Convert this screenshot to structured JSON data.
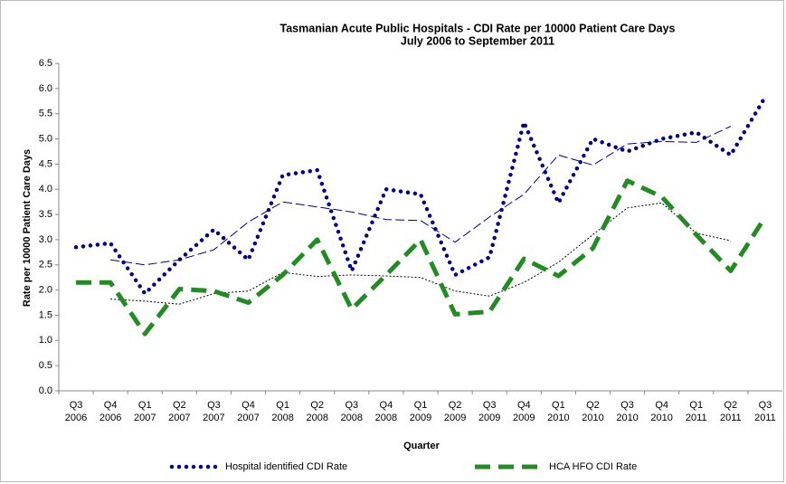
{
  "chart_data": {
    "type": "line",
    "title": "Tasmanian Acute Public Hospitals - CDI Rate per 10000 Patient Care Days",
    "subtitle": "July 2006 to September 2011",
    "x_label": "Quarter",
    "y_label": "Rate per 10000 Patient Care Days",
    "categories": [
      "Q3 2006",
      "Q4 2006",
      "Q1 2007",
      "Q2 2007",
      "Q3 2007",
      "Q4 2007",
      "Q1 2008",
      "Q2 2008",
      "Q3 2008",
      "Q4 2008",
      "Q1 2009",
      "Q2 2009",
      "Q3 2009",
      "Q4 2009",
      "Q1 2010",
      "Q2 2010",
      "Q3 2010",
      "Q4 2010",
      "Q1 2011",
      "Q2 2011",
      "Q3 2011"
    ],
    "series": [
      {
        "name": "Hospital identified CDI Rate",
        "color": "#000080",
        "style": "dotted",
        "values": [
          2.85,
          2.93,
          1.93,
          2.6,
          3.2,
          2.6,
          4.28,
          4.38,
          2.38,
          4.0,
          3.9,
          2.3,
          2.65,
          5.33,
          3.73,
          5.0,
          4.75,
          5.0,
          5.13,
          4.68,
          5.83
        ]
      },
      {
        "name": "HCA HFO CDI Rate",
        "color": "#228b22",
        "style": "dashed",
        "values": [
          2.15,
          2.15,
          1.13,
          2.02,
          1.98,
          1.75,
          2.3,
          3.0,
          1.62,
          2.3,
          3.0,
          1.52,
          1.57,
          2.62,
          2.28,
          2.83,
          4.17,
          3.85,
          3.1,
          2.38,
          3.45
        ]
      }
    ],
    "trendlines": [
      {
        "color": "#000080",
        "style": "trend-dash",
        "values": [
          null,
          2.6,
          2.5,
          2.6,
          2.8,
          3.35,
          3.75,
          3.65,
          3.55,
          3.4,
          3.38,
          2.95,
          3.45,
          3.9,
          4.68,
          4.48,
          4.9,
          4.95,
          4.93,
          5.25,
          null
        ]
      },
      {
        "color": "#000000",
        "style": "trend-dot",
        "values": [
          null,
          1.82,
          1.78,
          1.72,
          1.93,
          1.98,
          2.35,
          2.27,
          2.3,
          2.28,
          2.25,
          1.98,
          1.88,
          2.15,
          2.55,
          3.1,
          3.63,
          3.73,
          3.13,
          2.98,
          null
        ]
      }
    ],
    "ylim": [
      0,
      6.5
    ],
    "yticks": [
      {
        "value": 0,
        "label": "0.0"
      },
      0.5,
      {
        "value": 1,
        "label": "1.0"
      },
      1.5,
      {
        "value": 2,
        "label": "2.0"
      },
      2.5,
      {
        "value": 3,
        "label": "3.0"
      },
      3.5,
      {
        "value": 4,
        "label": "4.0"
      },
      4.5,
      {
        "value": 5,
        "label": "5.0"
      },
      5.5,
      {
        "value": 6,
        "label": "6.0"
      },
      6.5
    ],
    "grid": false,
    "legend": "bottom"
  }
}
